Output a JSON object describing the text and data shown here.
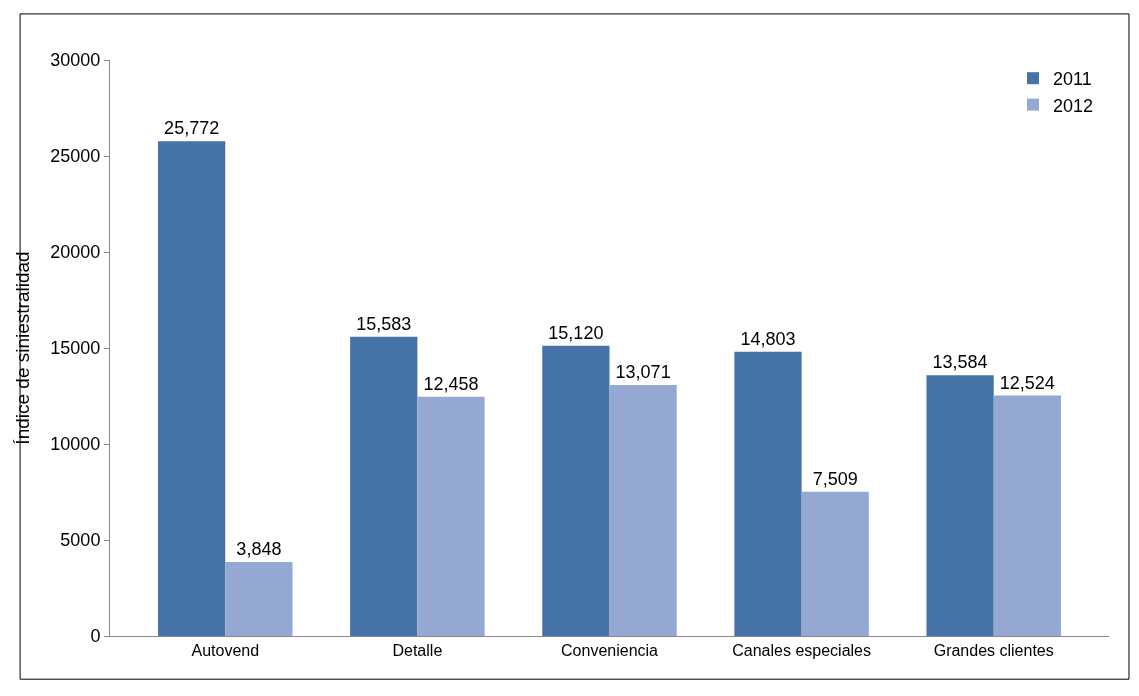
{
  "chart_data": {
    "type": "bar",
    "ylabel": "Índice de siniestralidad",
    "categories": [
      "Autovend",
      "Detalle",
      "Conveniencia",
      "Canales especiales",
      "Grandes clientes"
    ],
    "series": [
      {
        "name": "2011",
        "color": "#4572a7",
        "values": [
          25772,
          15583,
          15120,
          14803,
          13584
        ],
        "value_labels": [
          "25,772",
          "15,583",
          "15,120",
          "14,803",
          "13,584"
        ]
      },
      {
        "name": "2012",
        "color": "#95a8d1",
        "values": [
          3848,
          12458,
          13071,
          7509,
          12524
        ],
        "value_labels": [
          "3,848",
          "12,458",
          "13,071",
          "7,509",
          "12,524"
        ]
      }
    ],
    "ylim": [
      0,
      30000
    ],
    "yticks": [
      0,
      5000,
      10000,
      15000,
      20000,
      25000,
      30000
    ],
    "legend": "top right"
  }
}
